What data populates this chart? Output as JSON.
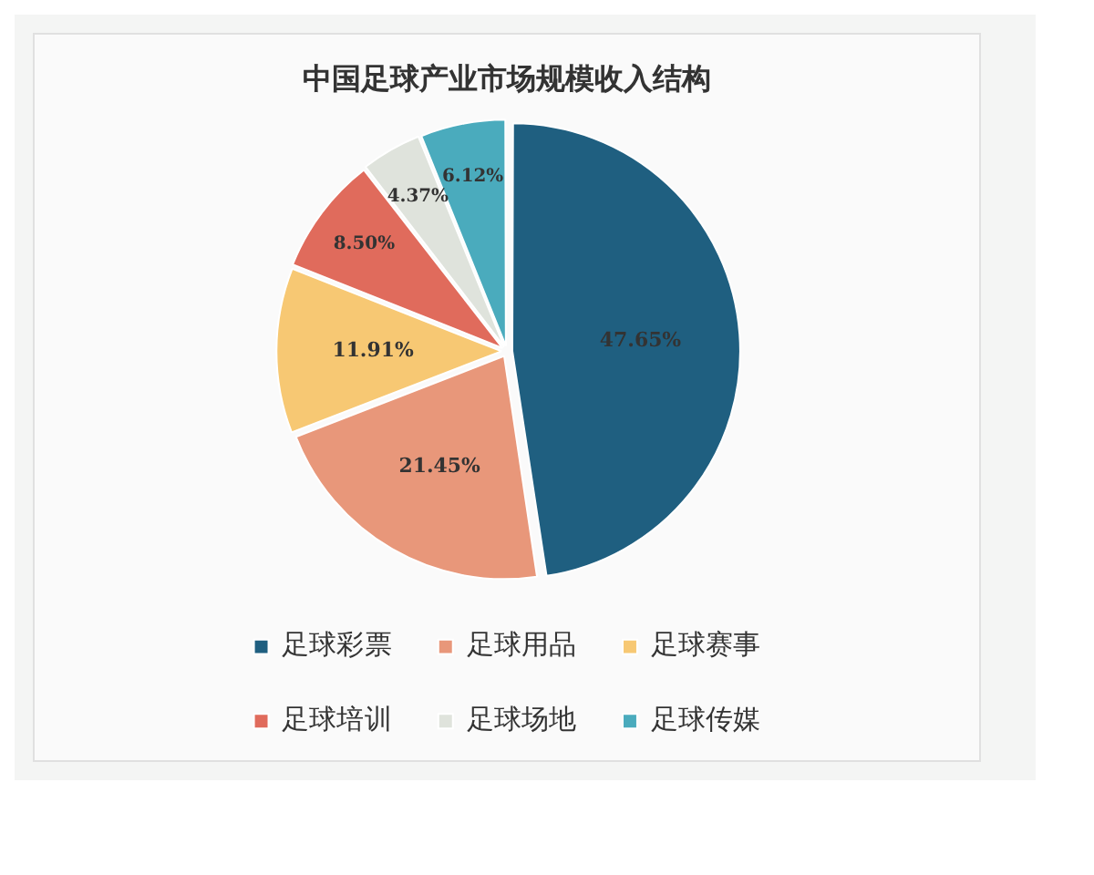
{
  "chart_data": {
    "type": "pie",
    "title": "中国足球产业市场规模收入结构",
    "categories": [
      "足球彩票",
      "足球用品",
      "足球赛事",
      "足球培训",
      "足球场地",
      "足球传媒"
    ],
    "values": [
      47.65,
      21.45,
      11.91,
      8.5,
      4.37,
      6.12
    ],
    "colors": [
      "#1f5f80",
      "#e8977a",
      "#f7c873",
      "#e06b5c",
      "#dfe3dc",
      "#4aabbd"
    ],
    "value_labels": [
      "47.65%",
      "21.45%",
      "11.91%",
      "8.50%",
      "4.37%",
      "6.12%"
    ],
    "legend": "bottom"
  }
}
